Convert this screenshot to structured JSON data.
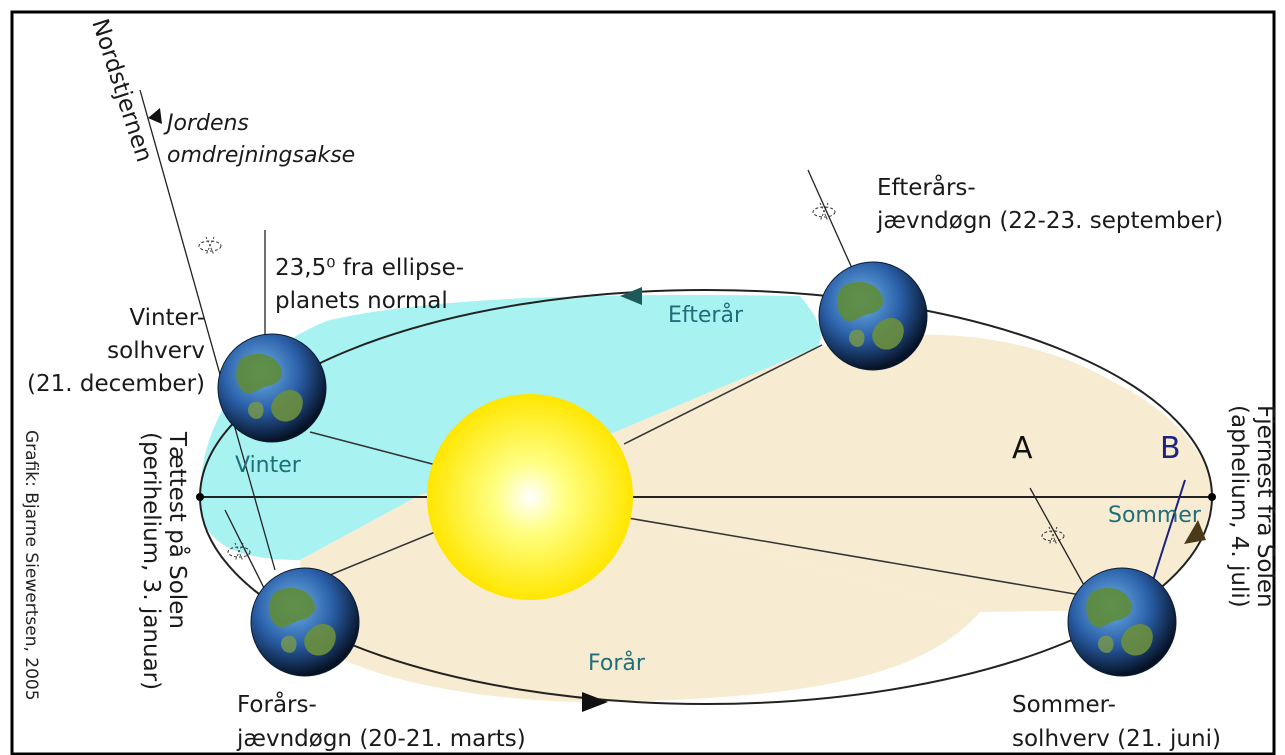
{
  "labels": {
    "north_star": "Nordstjernen",
    "axis_line1": "Jordens",
    "axis_line2": "omdrejningsakse",
    "tilt_line1": "23,5⁰ fra ellipse-",
    "tilt_line2": "planets normal",
    "winter_solstice_line1": "Vinter-",
    "winter_solstice_line2": "solhverv",
    "winter_solstice_line3": "(21. december)",
    "autumn_equinox_line1": "Efterårs-",
    "autumn_equinox_line2": "jævndøgn (22-23. september)",
    "spring_equinox_line1": "Forårs-",
    "spring_equinox_line2": "jævndøgn (20-21. marts)",
    "summer_solstice_line1": "Sommer-",
    "summer_solstice_line2": "solhverv (21. juni)",
    "perihelion_line1": "Tættest på Solen",
    "perihelion_line2": "(perihelium, 3. januar)",
    "aphelion_line1": "Fjernest fra Solen",
    "aphelion_line2": "(aphelium, 4. juli)",
    "credit": "Grafik: Bjarne Siewertsen, 2005",
    "point_a": "A",
    "point_b": "B"
  },
  "seasons": {
    "winter": "Vinter",
    "spring": "Forår",
    "summer": "Sommer",
    "autumn": "Efterår"
  },
  "colors": {
    "winter_autumn_fill": "#a8f2f2",
    "spring_summer_fill": "#f7ecd2",
    "sun": "#ffff00",
    "season_text": "#1f6f7a",
    "arrow": "#1f5a5a",
    "orbit": "#222222"
  }
}
